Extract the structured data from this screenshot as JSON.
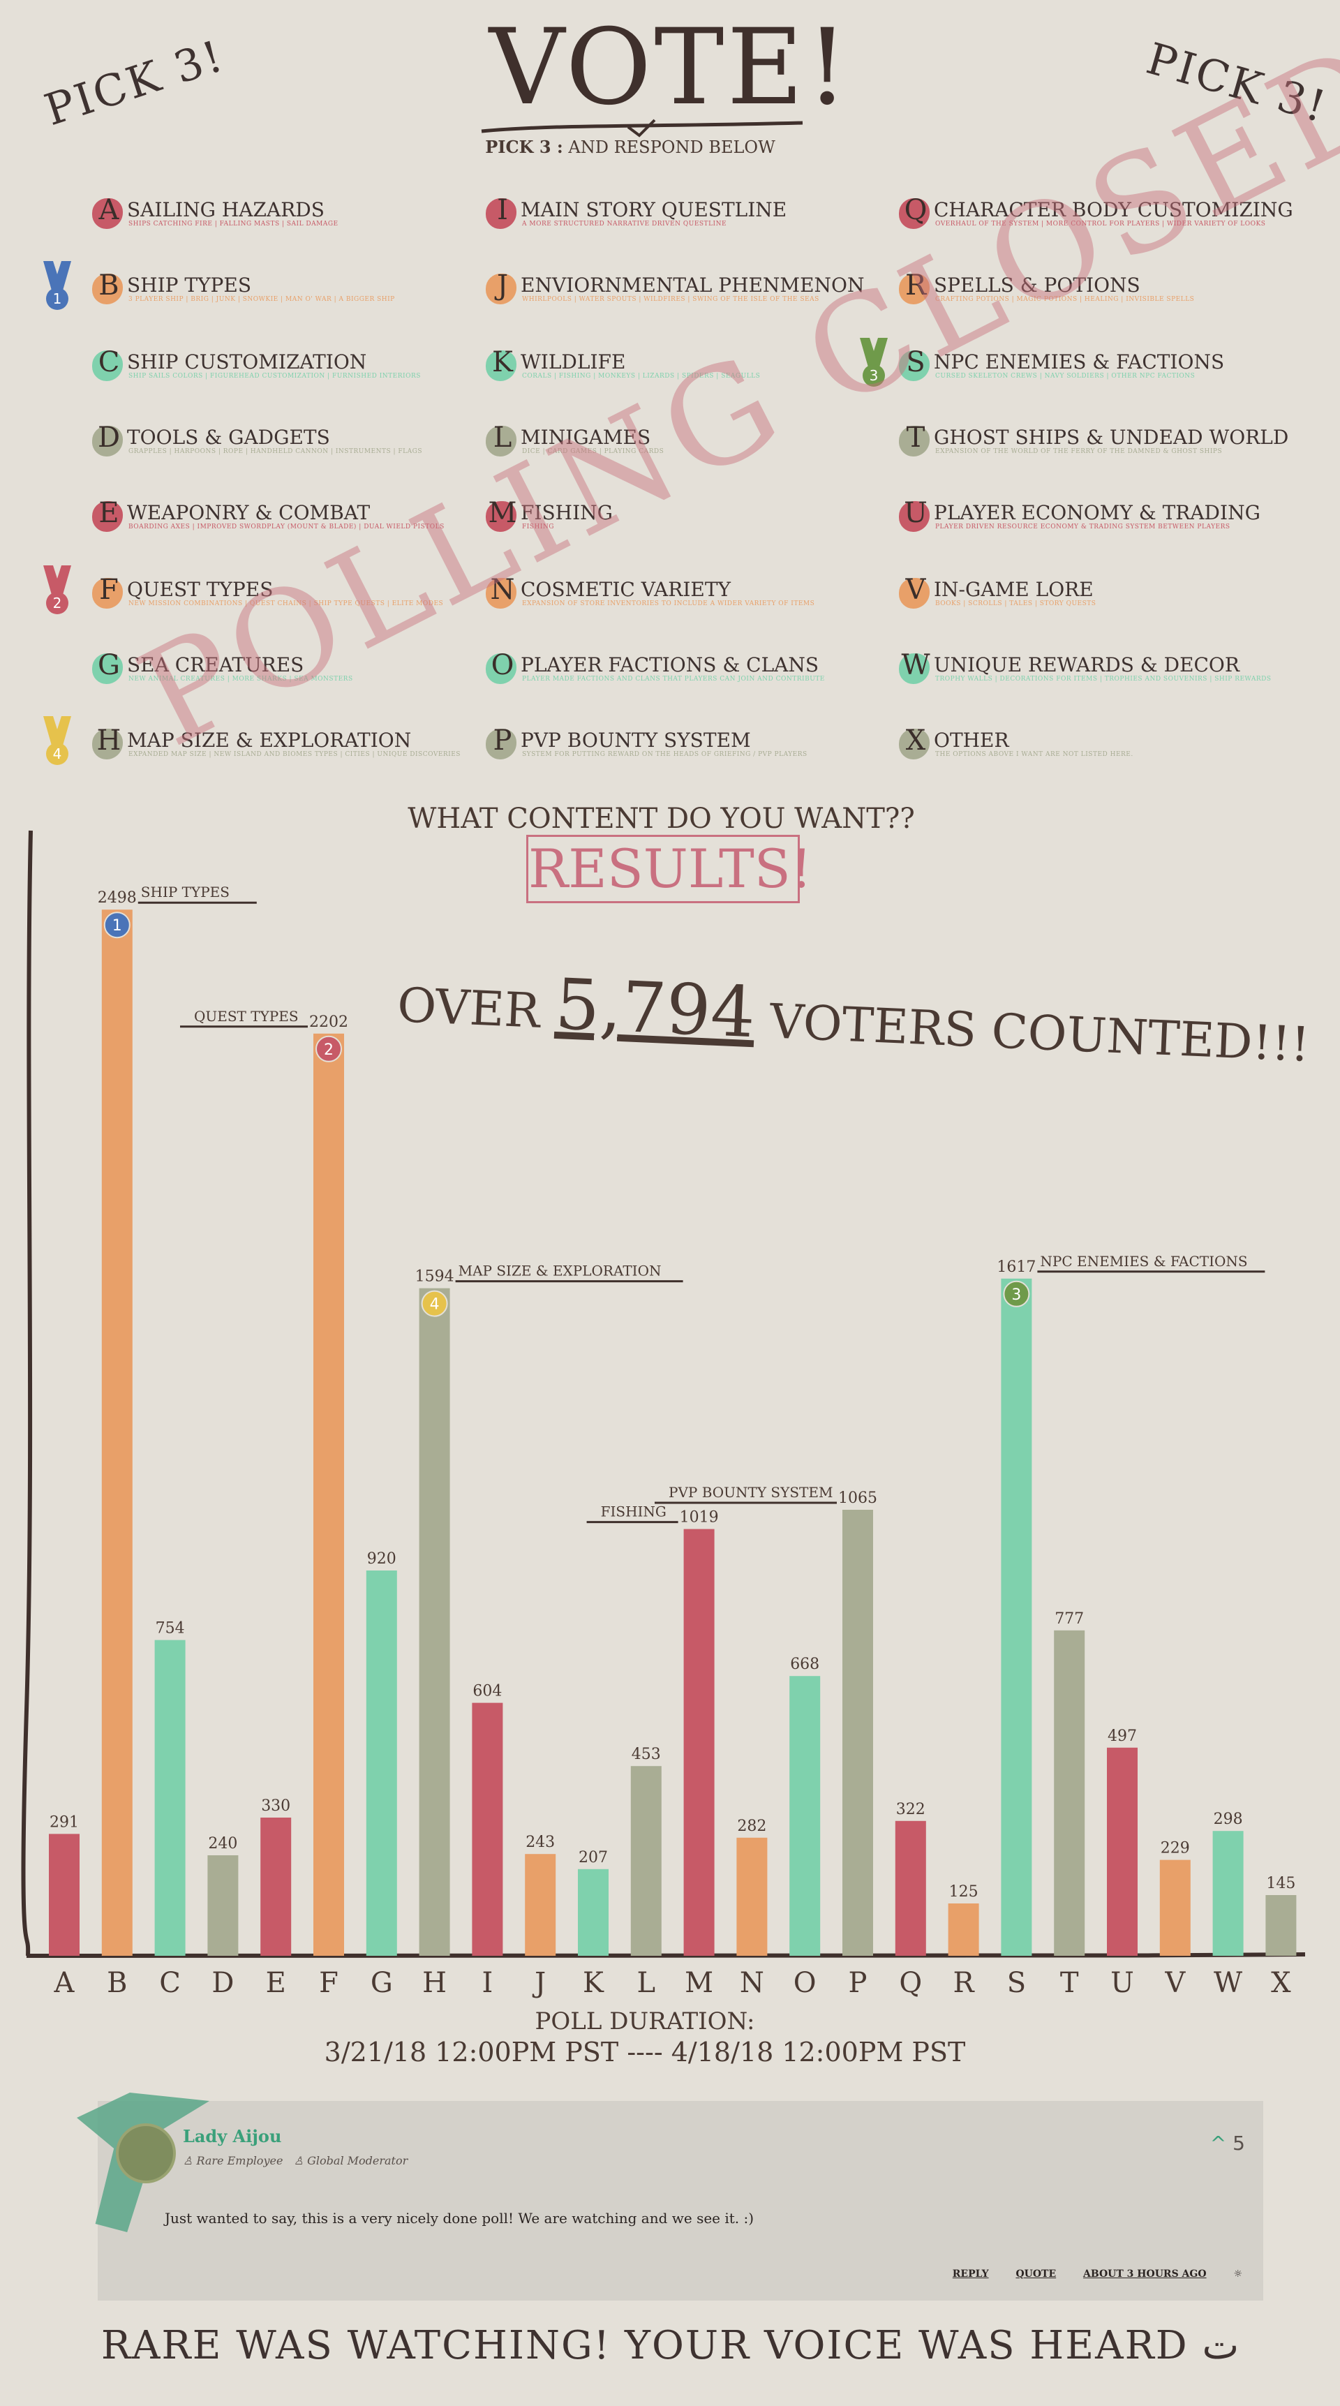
{
  "header": {
    "pick_left": "PICK 3!",
    "pick_right": "PICK 3!",
    "title": "VOTE!",
    "subtitle_bold": "PICK 3 :",
    "subtitle_rest": "AND RESPOND BELOW"
  },
  "options": [
    {
      "letter": "A",
      "name": "SAILING HAZARDS",
      "desc": "SHIPS CATCHING FIRE | FALLING MASTS | SAIL DAMAGE",
      "color": "#c75a67"
    },
    {
      "letter": "B",
      "name": "SHIP TYPES",
      "desc": "3 PLAYER SHIP | BRIG | JUNK | SNOWKIE | MAN O' WAR | A BIGGER SHIP",
      "color": "#e8a069",
      "medal": "1"
    },
    {
      "letter": "C",
      "name": "SHIP CUSTOMIZATION",
      "desc": "SHIP SAILS COLORS | FIGUREHEAD CUSTOMIZATION | FURNISHED INTERIORS",
      "color": "#7fd1ad"
    },
    {
      "letter": "D",
      "name": "TOOLS & GADGETS",
      "desc": "GRAPPLES | HARPOONS | ROPE | HANDHELD CANNON | INSTRUMENTS | FLAGS",
      "color": "#a9ad94"
    },
    {
      "letter": "E",
      "name": "WEAPONRY & COMBAT",
      "desc": "BOARDING AXES | IMPROVED SWORDPLAY (MOUNT & BLADE) | DUAL WIELD PISTOLS",
      "color": "#c75a67"
    },
    {
      "letter": "F",
      "name": "QUEST TYPES",
      "desc": "NEW MISSION COMBINATIONS | QUEST CHAINS | SHIP TYPE QUESTS | ELITE MODES",
      "color": "#e8a069",
      "medal": "2"
    },
    {
      "letter": "G",
      "name": "SEA CREATURES",
      "desc": "NEW ANIMAL CREATURES | MORE SHARKS | SEA MONSTERS",
      "color": "#7fd1ad"
    },
    {
      "letter": "H",
      "name": "MAP SIZE & EXPLORATION",
      "desc": "EXPANDED MAP SIZE | NEW ISLAND AND BIOMES TYPES | CITIES | UNIQUE DISCOVERIES",
      "color": "#a9ad94",
      "medal": "4"
    },
    {
      "letter": "I",
      "name": "MAIN STORY QUESTLINE",
      "desc": "A MORE STRUCTURED NARRATIVE DRIVEN QUESTLINE",
      "color": "#c75a67"
    },
    {
      "letter": "J",
      "name": "ENVIORNMENTAL PHENMENON",
      "desc": "WHIRLPOOLS | WATER SPOUTS | WILDFIRES | SWING OF THE ISLE OF THE SEAS",
      "color": "#e8a069"
    },
    {
      "letter": "K",
      "name": "WILDLIFE",
      "desc": "CORALS | FISHING | MONKEYS | LIZARDS | SPIDERS | SEAGULLS",
      "color": "#7fd1ad"
    },
    {
      "letter": "L",
      "name": "MINIGAMES",
      "desc": "DICE | CARD GAMES | PLAYING CARDS",
      "color": "#a9ad94"
    },
    {
      "letter": "M",
      "name": "FISHING",
      "desc": "FISHING",
      "color": "#c75a67"
    },
    {
      "letter": "N",
      "name": "COSMETIC VARIETY",
      "desc": "EXPANSION OF STORE INVENTORIES TO INCLUDE A WIDER VARIETY OF ITEMS",
      "color": "#e8a069"
    },
    {
      "letter": "O",
      "name": "PLAYER FACTIONS & CLANS",
      "desc": "PLAYER MADE FACTIONS AND CLANS THAT PLAYERS CAN JOIN AND CONTRIBUTE",
      "color": "#7fd1ad"
    },
    {
      "letter": "P",
      "name": "PVP BOUNTY SYSTEM",
      "desc": "SYSTEM FOR PUTTING REWARD ON THE HEADS OF GRIEFING / PVP PLAYERS",
      "color": "#a9ad94"
    },
    {
      "letter": "Q",
      "name": "CHARACTER BODY CUSTOMIZING",
      "desc": "OVERHAUL OF THE SYSTEM | MORE CONTROL FOR PLAYERS | WIDER VARIETY OF LOOKS",
      "color": "#c75a67"
    },
    {
      "letter": "R",
      "name": "SPELLS & POTIONS",
      "desc": "CRAFTING POTIONS | MAGIC POTIONS | HEALING | INVISIBLE SPELLS",
      "color": "#e8a069"
    },
    {
      "letter": "S",
      "name": "NPC ENEMIES & FACTIONS",
      "desc": "CURSED SKELETON CREWS | NAVY SOLDIERS | OTHER NPC FACTIONS",
      "color": "#7fd1ad",
      "medal": "3"
    },
    {
      "letter": "T",
      "name": "GHOST SHIPS & UNDEAD WORLD",
      "desc": "EXPANSION OF THE WORLD OF THE FERRY OF THE DAMNED & GHOST SHIPS",
      "color": "#a9ad94"
    },
    {
      "letter": "U",
      "name": "PLAYER ECONOMY & TRADING",
      "desc": "PLAYER DRIVEN RESOURCE ECONOMY & TRADING SYSTEM BETWEEN PLAYERS",
      "color": "#c75a67"
    },
    {
      "letter": "V",
      "name": "IN-GAME LORE",
      "desc": "BOOKS | SCROLLS | TALES | STORY QUESTS",
      "color": "#e8a069"
    },
    {
      "letter": "W",
      "name": "UNIQUE REWARDS & DECOR",
      "desc": "TROPHY WALLS | DECORATIONS FOR ITEMS | TROPHIES AND SOUVENIRS | SHIP REWARDS",
      "color": "#7fd1ad"
    },
    {
      "letter": "X",
      "name": "OTHER",
      "desc": "THE OPTIONS ABOVE I WANT ARE NOT LISTED HERE.",
      "color": "#a9ad94"
    }
  ],
  "stamp": "POLLING CLOSED",
  "question": "WHAT CONTENT DO YOU WANT??",
  "results_label": "RESULTS!",
  "voters": {
    "over": "OVER",
    "count": "5,794",
    "rest": "VOTERS COUNTED!!!"
  },
  "chart_data": {
    "type": "bar",
    "categories": [
      "A",
      "B",
      "C",
      "D",
      "E",
      "F",
      "G",
      "H",
      "I",
      "J",
      "K",
      "L",
      "M",
      "N",
      "O",
      "P",
      "Q",
      "R",
      "S",
      "T",
      "U",
      "V",
      "W",
      "X"
    ],
    "values": [
      291,
      2498,
      754,
      240,
      330,
      2202,
      920,
      1594,
      604,
      243,
      207,
      453,
      1019,
      282,
      668,
      1065,
      322,
      125,
      1617,
      777,
      497,
      229,
      298,
      145
    ],
    "colors": [
      "#c75a67",
      "#e8a069",
      "#7fd1ad",
      "#a9ad94",
      "#c75a67",
      "#e8a069",
      "#7fd1ad",
      "#a9ad94",
      "#c75a67",
      "#e8a069",
      "#7fd1ad",
      "#a9ad94",
      "#c75a67",
      "#e8a069",
      "#7fd1ad",
      "#a9ad94",
      "#c75a67",
      "#e8a069",
      "#7fd1ad",
      "#a9ad94",
      "#c75a67",
      "#e8a069",
      "#7fd1ad",
      "#a9ad94"
    ],
    "annotations": [
      {
        "category": "B",
        "label": "SHIP TYPES",
        "rank": "1",
        "rank_color": "#4a74b8",
        "side": "right"
      },
      {
        "category": "F",
        "label": "QUEST TYPES",
        "rank": "2",
        "rank_color": "#c75a67",
        "side": "left"
      },
      {
        "category": "H",
        "label": "MAP SIZE & EXPLORATION",
        "rank": "4",
        "rank_color": "#e6c24c",
        "side": "right"
      },
      {
        "category": "M",
        "label": "FISHING",
        "side": "left"
      },
      {
        "category": "P",
        "label": "PVP BOUNTY SYSTEM",
        "side": "left"
      },
      {
        "category": "S",
        "label": "NPC ENEMIES & FACTIONS",
        "rank": "3",
        "rank_color": "#6f9a4a",
        "side": "right"
      }
    ],
    "title": "",
    "xlabel": "",
    "ylabel": "",
    "ylim": [
      0,
      2600
    ]
  },
  "duration": {
    "label": "POLL DURATION:",
    "range": "3/21/18 12:00PM PST ---- 4/18/18 12:00PM PST"
  },
  "comment": {
    "user": "Lady Aijou",
    "role1": "Rare Employee",
    "role2": "Global Moderator",
    "votes": "5",
    "text": "Just wanted to say, this is a very nicely done poll! We are watching and we see it. :)",
    "reply": "REPLY",
    "quote": "QUOTE",
    "time": "ABOUT 3 HOURS AGO"
  },
  "footer": "RARE WAS WATCHING! YOUR VOICE WAS HEARD"
}
